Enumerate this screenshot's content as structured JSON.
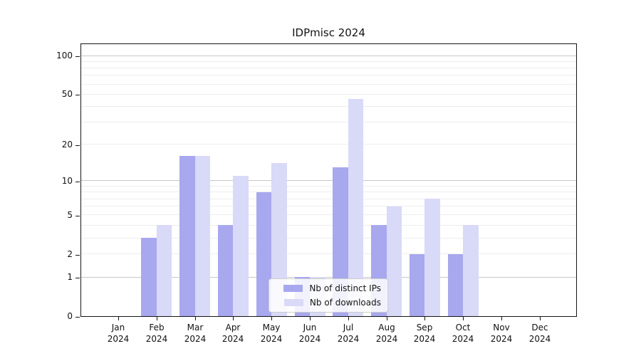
{
  "title": "IDPmisc 2024",
  "colors": {
    "distinct_ips": "#a8a8ee",
    "downloads": "#d9d9f8",
    "grid_major": "#c8c8c8",
    "grid_minor": "#ededed"
  },
  "legend": {
    "items": [
      {
        "label": "Nb of distinct IPs",
        "color": "#a8a8ee"
      },
      {
        "label": "Nb of downloads",
        "color": "#d9d9f8"
      }
    ]
  },
  "chart_data": {
    "type": "bar",
    "title": "IDPmisc 2024",
    "categories": [
      "Jan 2024",
      "Feb 2024",
      "Mar 2024",
      "Apr 2024",
      "May 2024",
      "Jun 2024",
      "Jul 2024",
      "Aug 2024",
      "Sep 2024",
      "Oct 2024",
      "Nov 2024",
      "Dec 2024"
    ],
    "series": [
      {
        "name": "Nb of distinct IPs",
        "color": "#a8a8ee",
        "values": [
          0,
          3,
          16,
          4,
          8,
          1,
          13,
          4,
          2,
          2,
          0,
          0
        ]
      },
      {
        "name": "Nb of downloads",
        "color": "#d9d9f8",
        "values": [
          0,
          4,
          16,
          11,
          14,
          1,
          46,
          6,
          7,
          4,
          0,
          0
        ]
      }
    ],
    "xlabel": "",
    "ylabel": "",
    "yscale": "log1p",
    "ylim": [
      0,
      126
    ],
    "yticks": [
      0,
      1,
      2,
      5,
      10,
      20,
      50,
      100
    ],
    "grid": "both",
    "grid_major_at": [
      1,
      10,
      100
    ],
    "grid_minor_at": [
      2,
      3,
      4,
      5,
      6,
      7,
      8,
      9,
      20,
      30,
      40,
      50,
      60,
      70,
      80,
      90
    ],
    "legend_position": "lower-center"
  }
}
